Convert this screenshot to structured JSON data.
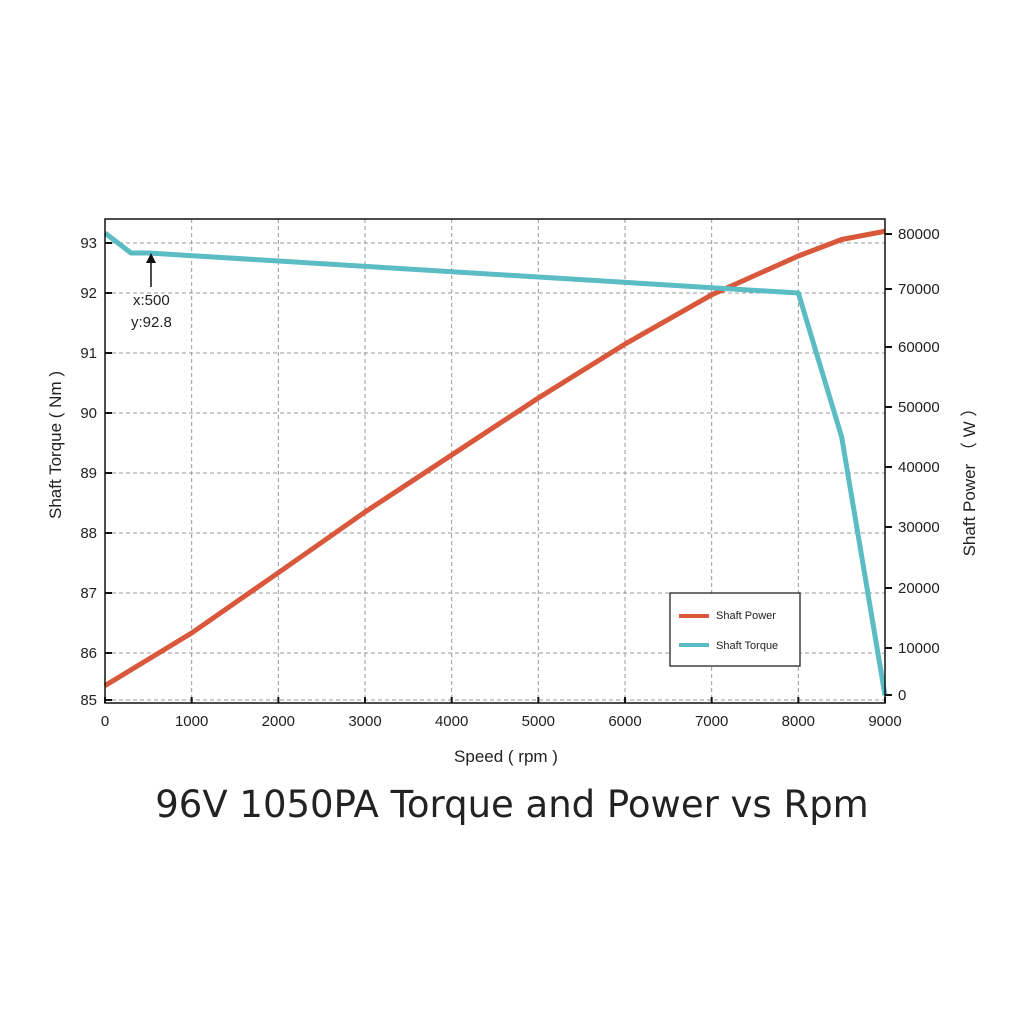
{
  "chart_data": {
    "type": "line",
    "title": "96V 1050PA Torque and Power vs Rpm",
    "xlabel": "Speed ( rpm )",
    "ylabel_left": "Shaft Torque ( Nm )",
    "ylabel_right": "Shaft Power （ W ）",
    "xlim": [
      0,
      9000
    ],
    "ylim_left": [
      85,
      93
    ],
    "ylim_right": [
      0,
      80000
    ],
    "x_ticks": [
      "0",
      "1000",
      "2000",
      "3000",
      "4000",
      "5000",
      "6000",
      "7000",
      "8000",
      "9000"
    ],
    "y_left_ticks": [
      "85",
      "86",
      "87",
      "88",
      "89",
      "90",
      "91",
      "92",
      "93"
    ],
    "y_right_ticks": [
      "0",
      "10000",
      "20000",
      "30000",
      "40000",
      "50000",
      "60000",
      "70000",
      "80000"
    ],
    "grid": true,
    "legend_position": "bottom-right",
    "series": [
      {
        "name": "Shaft Power",
        "axis": "right",
        "color": "#d9573a",
        "x": [
          0,
          1000,
          2000,
          3000,
          4000,
          5000,
          6000,
          7000,
          8000,
          8500,
          9000
        ],
        "values": [
          2000,
          12500,
          22500,
          32500,
          42000,
          51500,
          60500,
          69000,
          76000,
          79000,
          80500
        ]
      },
      {
        "name": "Shaft Torque",
        "axis": "left",
        "color": "#5bbcc4",
        "x": [
          0,
          300,
          500,
          8000,
          8500,
          9000
        ],
        "values": [
          93.2,
          92.8,
          92.8,
          92.0,
          89.6,
          85.1
        ]
      }
    ],
    "annotation": {
      "x_label": "x:500",
      "y_label": "y:92.8",
      "x": 500,
      "y": 92.8
    }
  }
}
